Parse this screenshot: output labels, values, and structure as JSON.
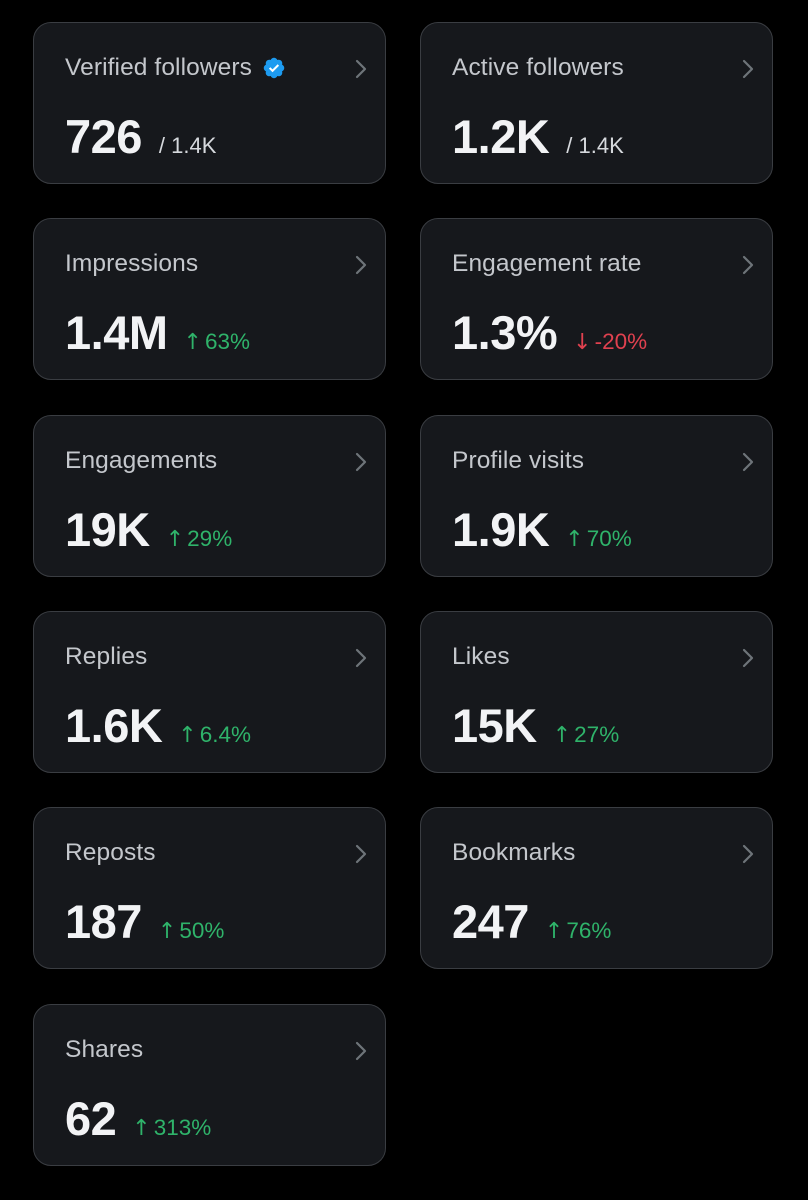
{
  "colors": {
    "background": "#000000",
    "card_background": "#16181c",
    "card_border": "#3a3d42",
    "verified_badge": "#1d9bf0",
    "positive": "#2fb36a",
    "negative": "#e0414f"
  },
  "icons": {
    "card_chevron": "chevron-right-icon",
    "verified_badge": "verified-badge-icon",
    "delta_up": "arrow-up-icon",
    "delta_down": "arrow-down-icon"
  },
  "cards": [
    {
      "label": "Verified followers",
      "value": "726",
      "total": "/ 1.4K",
      "verified": true
    },
    {
      "label": "Active followers",
      "value": "1.2K",
      "total": "/ 1.4K"
    },
    {
      "label": "Impressions",
      "value": "1.4M",
      "delta": "63%",
      "direction": "up",
      "arrow": "↑"
    },
    {
      "label": "Engagement rate",
      "value": "1.3%",
      "delta": "-20%",
      "direction": "down",
      "arrow": "↓"
    },
    {
      "label": "Engagements",
      "value": "19K",
      "delta": "29%",
      "direction": "up",
      "arrow": "↑"
    },
    {
      "label": "Profile visits",
      "value": "1.9K",
      "delta": "70%",
      "direction": "up",
      "arrow": "↑"
    },
    {
      "label": "Replies",
      "value": "1.6K",
      "delta": "6.4%",
      "direction": "up",
      "arrow": "↑"
    },
    {
      "label": "Likes",
      "value": "15K",
      "delta": "27%",
      "direction": "up",
      "arrow": "↑"
    },
    {
      "label": "Reposts",
      "value": "187",
      "delta": "50%",
      "direction": "up",
      "arrow": "↑"
    },
    {
      "label": "Bookmarks",
      "value": "247",
      "delta": "76%",
      "direction": "up",
      "arrow": "↑"
    },
    {
      "label": "Shares",
      "value": "62",
      "delta": "313%",
      "direction": "up",
      "arrow": "↑"
    }
  ]
}
